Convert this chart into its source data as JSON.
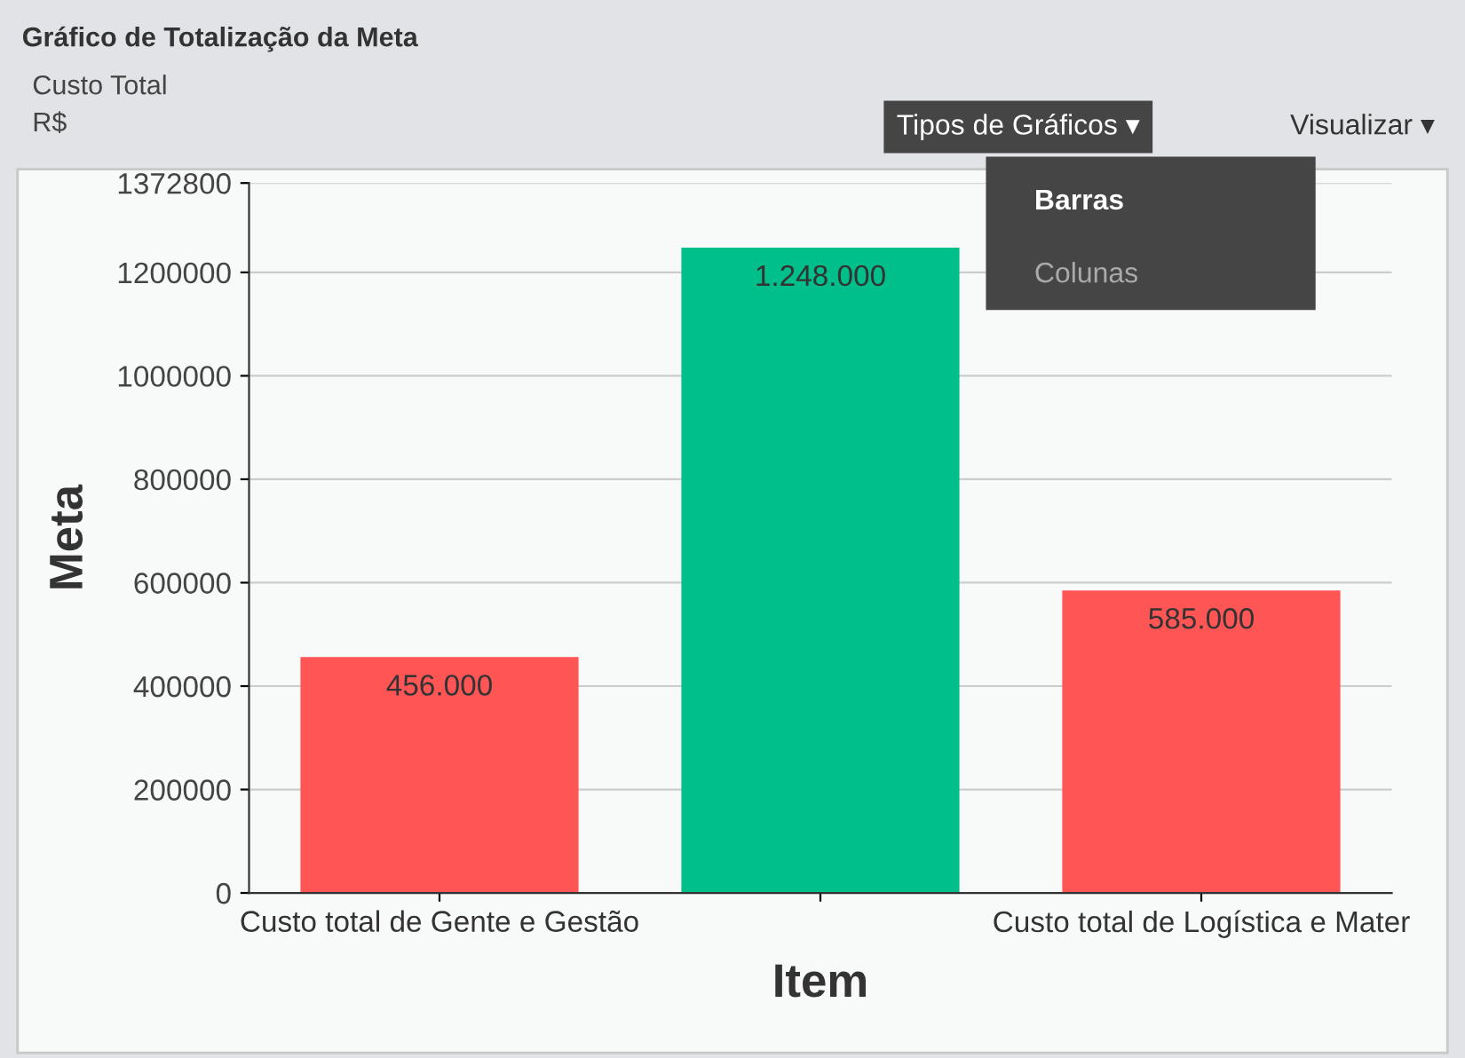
{
  "chart_data": {
    "type": "bar",
    "title": "Gráfico de Totalização da Meta",
    "subtitle": "Custo Total\nR$",
    "annotations": [
      "Tipos de Gráficos ▾",
      "Visualizar ▾",
      "Barras",
      "Colunas"
    ],
    "xlabel": "Item",
    "ylabel": "Meta",
    "categories": [
      "Custo total de Gente e Gestão",
      null,
      "Custo total de Logística e Mater"
    ],
    "values": [
      456000,
      1248000,
      585000
    ],
    "colors": [
      "#ff5555",
      "#00bf8a",
      "#ff5555"
    ],
    "value_labels": [
      "456.000",
      "1.248.000",
      "585.000"
    ],
    "ylim": [
      0,
      1372800
    ],
    "yticks": [
      0,
      200000,
      400000,
      600000,
      800000,
      1000000,
      1200000,
      1372800
    ],
    "grid": "y"
  }
}
